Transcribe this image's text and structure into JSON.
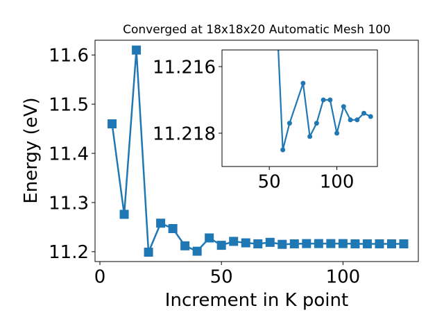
{
  "chart_data": [
    {
      "type": "line",
      "title": "Converged at 18x18x20 Automatic Mesh 100",
      "xlabel": "Increment in K point",
      "ylabel": "Energy (eV)",
      "xlim": [
        -2,
        131
      ],
      "ylim": [
        11.18,
        11.63
      ],
      "xticks": [
        0,
        50,
        100
      ],
      "yticks": [
        11.2,
        11.3,
        11.4,
        11.5,
        11.6
      ],
      "ytick_labels": [
        "11.2",
        "11.3",
        "11.4",
        "11.5",
        "11.6"
      ],
      "grid": false,
      "marker": "square",
      "color": "#1f77b4",
      "series": [
        {
          "x": [
            5,
            10,
            15,
            20,
            25,
            30,
            35,
            40,
            45,
            50,
            55,
            60,
            65,
            70,
            75,
            80,
            85,
            90,
            95,
            100,
            105,
            110,
            115,
            120,
            125
          ],
          "y": [
            11.46,
            11.276,
            11.61,
            11.199,
            11.258,
            11.247,
            11.212,
            11.201,
            11.228,
            11.213,
            11.221,
            11.218,
            11.216,
            11.219,
            11.215,
            11.216,
            11.2165,
            11.2165,
            11.2165,
            11.2165,
            11.216,
            11.216,
            11.216,
            11.216,
            11.216
          ]
        }
      ]
    },
    {
      "type": "line",
      "title": "",
      "xlabel": "",
      "ylabel": "",
      "xlim": [
        15,
        130
      ],
      "ylim": [
        11.219,
        11.2155
      ],
      "xticks": [
        50,
        100
      ],
      "yticks": [
        11.216,
        11.218
      ],
      "ytick_labels": [
        "11.216",
        "11.218"
      ],
      "grid": false,
      "marker": "circle",
      "color": "#1f77b4",
      "series": [
        {
          "x": [
            55,
            60,
            65,
            75,
            80,
            85,
            90,
            95,
            100,
            105,
            110,
            115,
            120,
            125
          ],
          "y": [
            11.214,
            11.2185,
            11.2177,
            11.2165,
            11.2181,
            11.2177,
            11.217,
            11.217,
            11.218,
            11.2172,
            11.2176,
            11.2176,
            11.2174,
            11.2175
          ]
        }
      ]
    }
  ]
}
